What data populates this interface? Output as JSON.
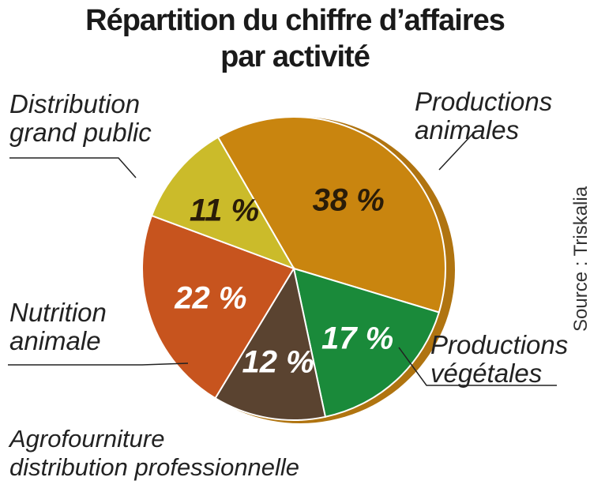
{
  "title_line1": "Répartition du chiffre d’affaires",
  "title_line2": "par activité",
  "source": "Source : Triskalia",
  "chart_data": {
    "type": "pie",
    "title": "Répartition du chiffre d’affaires par activité",
    "slices": [
      {
        "label_lines": [
          "Productions",
          "animales"
        ],
        "value": 38,
        "value_label": "38 %",
        "color": "#c9850f"
      },
      {
        "label_lines": [
          "Productions",
          "végétales"
        ],
        "value": 17,
        "value_label": "17 %",
        "color": "#1a8a3a"
      },
      {
        "label_lines": [
          "Agrofourniture",
          "distribution professionnelle"
        ],
        "value": 12,
        "value_label": "12 %",
        "color": "#5a4330"
      },
      {
        "label_lines": [
          "Nutrition",
          "animale"
        ],
        "value": 22,
        "value_label": "22 %",
        "color": "#c7541e"
      },
      {
        "label_lines": [
          "Distribution",
          "grand public"
        ],
        "value": 11,
        "value_label": "11 %",
        "color": "#cbbb2a"
      }
    ]
  }
}
